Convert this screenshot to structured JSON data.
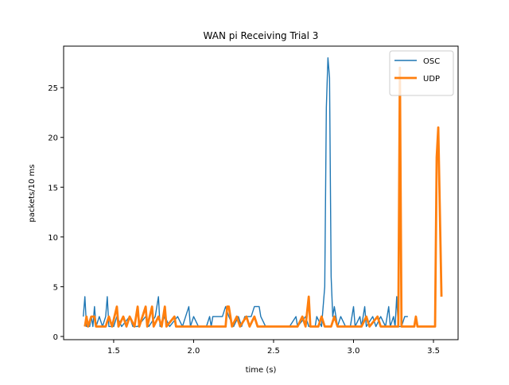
{
  "chart_data": {
    "type": "line",
    "title": "WAN pi Receiving Trial 3",
    "x_label": "time (s)",
    "y_label": "packets/10 ms",
    "xlim": [
      1.187,
      3.654
    ],
    "ylim": [
      -0.32,
      29.17
    ],
    "xticks": [
      1.5,
      {
        "value": 2,
        "label": "2.0"
      },
      2.5,
      {
        "value": 3,
        "label": "3.0"
      },
      3.5
    ],
    "yticks": [
      0,
      5,
      10,
      15,
      20,
      25
    ],
    "legend": "upper right",
    "series": [
      {
        "name": "OSC",
        "color": "#1f77b4",
        "width": 1,
        "x": [
          1.31,
          1.32,
          1.33,
          1.35,
          1.36,
          1.37,
          1.38,
          1.39,
          1.41,
          1.43,
          1.45,
          1.46,
          1.47,
          1.5,
          1.52,
          1.55,
          1.6,
          1.62,
          1.65,
          1.7,
          1.72,
          1.76,
          1.78,
          1.79,
          1.82,
          1.85,
          1.9,
          1.93,
          1.95,
          1.97,
          1.98,
          2,
          2.03,
          2.08,
          2.1,
          2.11,
          2.12,
          2.18,
          2.2,
          2.22,
          2.25,
          2.28,
          2.3,
          2.32,
          2.36,
          2.38,
          2.41,
          2.42,
          2.45,
          2.55,
          2.6,
          2.64,
          2.65,
          2.7,
          2.72,
          2.76,
          2.77,
          2.8,
          2.82,
          2.83,
          2.84,
          2.85,
          2.86,
          2.87,
          2.88,
          2.9,
          2.92,
          2.95,
          2.98,
          3,
          3.01,
          3.04,
          3.05,
          3.07,
          3.08,
          3.12,
          3.14,
          3.17,
          3.2,
          3.22,
          3.23,
          3.25,
          3.26,
          3.27,
          3.28,
          3.3,
          3.32,
          3.34
        ],
        "values": [
          2,
          4,
          1,
          1,
          2,
          1,
          3,
          1,
          2,
          1,
          2,
          4,
          1,
          1,
          2,
          1,
          2,
          1,
          1,
          2,
          1,
          2,
          4,
          1,
          2,
          1,
          2,
          1,
          2,
          3,
          1,
          2,
          1,
          1,
          2,
          1,
          2,
          2,
          3,
          2,
          1,
          2,
          1,
          2,
          2,
          3,
          3,
          2,
          1,
          1,
          1,
          2,
          1,
          2,
          1,
          1,
          2,
          1,
          5,
          23,
          28,
          26,
          6,
          2,
          3,
          1,
          2,
          1,
          1,
          3,
          1,
          2,
          1,
          3,
          1,
          2,
          1,
          2,
          1,
          3,
          1,
          2,
          1,
          4,
          1,
          1,
          2,
          2
        ]
      },
      {
        "name": "UDP",
        "color": "#ff7f0e",
        "width": 2,
        "x": [
          1.32,
          1.33,
          1.34,
          1.36,
          1.38,
          1.39,
          1.42,
          1.45,
          1.47,
          1.49,
          1.52,
          1.53,
          1.56,
          1.58,
          1.6,
          1.63,
          1.65,
          1.66,
          1.7,
          1.71,
          1.74,
          1.75,
          1.78,
          1.8,
          1.82,
          1.83,
          1.88,
          1.89,
          1.95,
          2.05,
          2.1,
          2.15,
          2.2,
          2.21,
          2.22,
          2.24,
          2.27,
          2.29,
          2.33,
          2.35,
          2.38,
          2.4,
          2.5,
          2.6,
          2.65,
          2.68,
          2.7,
          2.72,
          2.73,
          2.78,
          2.8,
          2.82,
          2.86,
          2.88,
          2.9,
          3,
          3.05,
          3.08,
          3.1,
          3.15,
          3.17,
          3.25,
          3.28,
          3.29,
          3.3,
          3.35,
          3.38,
          3.39,
          3.4,
          3.45,
          3.51,
          3.52,
          3.53,
          3.55
        ],
        "values": [
          1,
          2,
          1,
          2,
          2,
          1,
          1,
          1,
          2,
          1,
          3,
          1,
          2,
          1,
          2,
          1,
          3,
          1,
          3,
          1,
          3,
          1,
          2,
          1,
          3,
          1,
          2,
          1,
          1,
          1,
          1,
          1,
          1,
          3,
          3,
          1,
          2,
          1,
          2,
          1,
          2,
          1,
          1,
          1,
          1,
          2,
          1,
          4,
          1,
          1,
          2,
          1,
          1,
          2,
          1,
          1,
          1,
          2,
          1,
          2,
          1,
          1,
          1,
          27,
          1,
          1,
          1,
          2,
          1,
          1,
          1,
          18,
          21,
          4
        ]
      }
    ]
  }
}
